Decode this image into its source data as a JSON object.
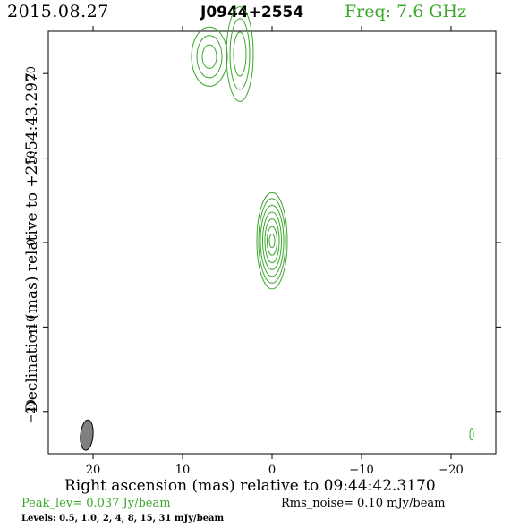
{
  "header": {
    "date": "2015.08.27",
    "source": "J0944+2554",
    "freq": "Freq: 7.6 GHz"
  },
  "footer": {
    "peak": "Peak_lev=  0.037 Jy/beam",
    "rms": "Rms_noise= 0.10 mJy/beam",
    "levels": "Levels: 0.5, 1.0,    2,    4,    8,   15,   31 mJy/beam"
  },
  "colors": {
    "contour": "#3aa82a",
    "beam": "#808080",
    "text": "#000000"
  },
  "chart_data": {
    "type": "contour",
    "xlabel": "Right ascension (mas) relative to 09:44:42.3170",
    "ylabel": "Declination (mas) relative to +25:54:43.297",
    "xlim": [
      25,
      -25
    ],
    "ylim": [
      -25,
      25
    ],
    "xticks": [
      20,
      10,
      0,
      -10,
      -20
    ],
    "xtick_labels": [
      "20",
      "10",
      "0",
      "−10",
      "−20"
    ],
    "yticks": [
      20,
      10,
      0,
      -10,
      -20
    ],
    "ytick_labels": [
      "20",
      "10",
      "0",
      "−10",
      "−20"
    ],
    "levels_mJy": [
      0.5,
      1.0,
      2,
      4,
      8,
      15,
      31
    ],
    "components": [
      {
        "name": "core",
        "x": 0.0,
        "y": 0.2,
        "rings": [
          {
            "a": 1.7,
            "b": 5.7
          },
          {
            "a": 1.5,
            "b": 5.0
          },
          {
            "a": 1.3,
            "b": 4.2
          },
          {
            "a": 1.05,
            "b": 3.4
          },
          {
            "a": 0.8,
            "b": 2.6
          },
          {
            "a": 0.55,
            "b": 1.7
          },
          {
            "a": 0.3,
            "b": 0.8
          }
        ]
      },
      {
        "name": "jet-east",
        "x": 7.0,
        "y": 22.0,
        "rings": [
          {
            "a": 2.0,
            "b": 3.5
          },
          {
            "a": 1.4,
            "b": 2.5
          },
          {
            "a": 0.8,
            "b": 1.4
          }
        ]
      },
      {
        "name": "jet-north",
        "x": 3.6,
        "y": 22.3,
        "rings": [
          {
            "a": 1.5,
            "b": 5.6
          },
          {
            "a": 1.1,
            "b": 4.2
          },
          {
            "a": 0.7,
            "b": 2.6
          }
        ]
      },
      {
        "name": "noise-blob",
        "x": -22.3,
        "y": -22.7,
        "rings": [
          {
            "a": 0.2,
            "b": 0.7
          }
        ]
      }
    ],
    "beam": {
      "x": 20.7,
      "y": -22.8,
      "major_mas": 3.6,
      "minor_mas": 1.4,
      "pa_deg": 5
    }
  }
}
